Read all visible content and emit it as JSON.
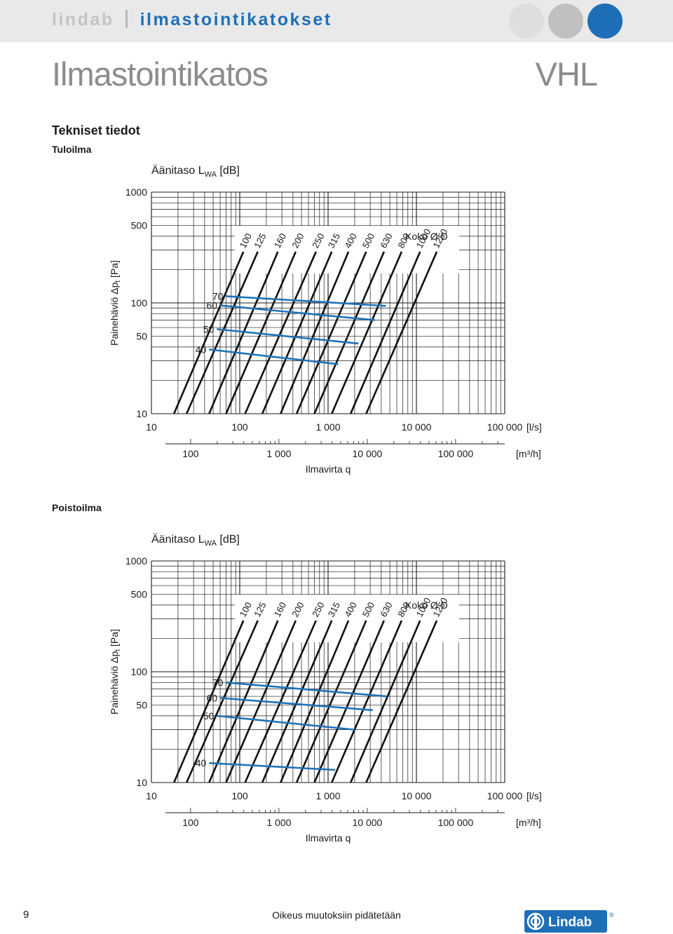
{
  "header": {
    "brand": "lindab",
    "section": "ilmastointikatokset",
    "title": "Ilmastointikatos",
    "model": "VHL",
    "dot_colors": [
      "#dedede",
      "#c0c0c0",
      "#1e6fb8"
    ]
  },
  "intro": {
    "heading": "Tekniset tiedot"
  },
  "charts": [
    {
      "section_label": "Tuloilma",
      "sound_label": "Äänitaso L",
      "sound_sub": "WA",
      "sound_unit": " [dB]",
      "ylabel": "Painehäviö Δp",
      "ylabel_sub": "t",
      "ylabel_unit": " [Pa]",
      "y_ticks": [
        "1000",
        "500",
        "100",
        "50",
        "10"
      ],
      "x_ticks_ls": [
        "10",
        "100",
        "1 000",
        "10 000",
        "100 000"
      ],
      "x_unit_ls": "[l/s]",
      "x_ticks_m3h": [
        "100",
        "1 000",
        "10 000",
        "100 000"
      ],
      "x_unit_m3h": "[m³/h]",
      "xlabel": "Ilmavirta q",
      "size_title": "Koko Ø D",
      "sizes": [
        "100",
        "125",
        "160",
        "200",
        "250",
        "315",
        "400",
        "500",
        "630",
        "800",
        "1000",
        "1250"
      ],
      "db_levels": [
        "40",
        "50",
        "60",
        "70"
      ]
    },
    {
      "section_label": "Poistoilma",
      "sound_label": "Äänitaso L",
      "sound_sub": "WA",
      "sound_unit": " [dB]",
      "ylabel": "Painehäviö Δp",
      "ylabel_sub": "t",
      "ylabel_unit": " [Pa]",
      "y_ticks": [
        "1000",
        "500",
        "100",
        "50",
        "10"
      ],
      "x_ticks_ls": [
        "10",
        "100",
        "1 000",
        "10 000",
        "100 000"
      ],
      "x_unit_ls": "[l/s]",
      "x_ticks_m3h": [
        "100",
        "1 000",
        "10 000",
        "100 000"
      ],
      "x_unit_m3h": "[m³/h]",
      "xlabel": "Ilmavirta q",
      "size_title": "Koko Ø D",
      "sizes": [
        "100",
        "125",
        "160",
        "200",
        "250",
        "315",
        "400",
        "500",
        "630",
        "800",
        "1000",
        "1250"
      ],
      "db_levels": [
        "40",
        "50",
        "60",
        "70"
      ]
    }
  ],
  "chart_data": [
    {
      "type": "line",
      "title": "Tuloilma",
      "xlabel": "Ilmavirta q [l/s]",
      "ylabel": "Painehäviö Δpt [Pa]",
      "x_scale": "log",
      "y_scale": "log",
      "xlim": [
        10,
        100000
      ],
      "ylim": [
        10,
        1000
      ],
      "grid": true,
      "series": [
        {
          "name": "100",
          "x": [
            18,
            110
          ],
          "y": [
            10,
            290
          ]
        },
        {
          "name": "125",
          "x": [
            25,
            160
          ],
          "y": [
            10,
            290
          ]
        },
        {
          "name": "160",
          "x": [
            45,
            270
          ],
          "y": [
            10,
            290
          ]
        },
        {
          "name": "200",
          "x": [
            70,
            430
          ],
          "y": [
            10,
            290
          ]
        },
        {
          "name": "250",
          "x": [
            115,
            730
          ],
          "y": [
            10,
            290
          ]
        },
        {
          "name": "315",
          "x": [
            180,
            1100
          ],
          "y": [
            10,
            290
          ]
        },
        {
          "name": "400",
          "x": [
            290,
            1700
          ],
          "y": [
            10,
            290
          ]
        },
        {
          "name": "500",
          "x": [
            440,
            2700
          ],
          "y": [
            10,
            290
          ]
        },
        {
          "name": "630",
          "x": [
            700,
            4300
          ],
          "y": [
            10,
            290
          ]
        },
        {
          "name": "800",
          "x": [
            1100,
            6800
          ],
          "y": [
            10,
            290
          ]
        },
        {
          "name": "1000",
          "x": [
            1800,
            11000
          ],
          "y": [
            10,
            290
          ]
        },
        {
          "name": "1250",
          "x": [
            2700,
            17000
          ],
          "y": [
            10,
            290
          ]
        },
        {
          "name": "40",
          "x": [
            45,
            1300
          ],
          "y": [
            38,
            28
          ]
        },
        {
          "name": "50",
          "x": [
            55,
            2200
          ],
          "y": [
            58,
            43
          ]
        },
        {
          "name": "60",
          "x": [
            60,
            3400
          ],
          "y": [
            95,
            70
          ]
        },
        {
          "name": "70",
          "x": [
            70,
            4500
          ],
          "y": [
            115,
            94
          ]
        }
      ]
    },
    {
      "type": "line",
      "title": "Poistoilma",
      "xlabel": "Ilmavirta q [l/s]",
      "ylabel": "Painehäviö Δpt [Pa]",
      "x_scale": "log",
      "y_scale": "log",
      "xlim": [
        10,
        100000
      ],
      "ylim": [
        10,
        1000
      ],
      "grid": true,
      "series": [
        {
          "name": "100",
          "x": [
            18,
            110
          ],
          "y": [
            10,
            290
          ]
        },
        {
          "name": "125",
          "x": [
            25,
            160
          ],
          "y": [
            10,
            290
          ]
        },
        {
          "name": "160",
          "x": [
            45,
            270
          ],
          "y": [
            10,
            290
          ]
        },
        {
          "name": "200",
          "x": [
            70,
            430
          ],
          "y": [
            10,
            290
          ]
        },
        {
          "name": "250",
          "x": [
            115,
            730
          ],
          "y": [
            10,
            290
          ]
        },
        {
          "name": "315",
          "x": [
            180,
            1100
          ],
          "y": [
            10,
            290
          ]
        },
        {
          "name": "400",
          "x": [
            290,
            1700
          ],
          "y": [
            10,
            290
          ]
        },
        {
          "name": "500",
          "x": [
            440,
            2700
          ],
          "y": [
            10,
            290
          ]
        },
        {
          "name": "630",
          "x": [
            700,
            4300
          ],
          "y": [
            10,
            290
          ]
        },
        {
          "name": "800",
          "x": [
            1100,
            6800
          ],
          "y": [
            10,
            290
          ]
        },
        {
          "name": "1000",
          "x": [
            1800,
            11000
          ],
          "y": [
            10,
            290
          ]
        },
        {
          "name": "1250",
          "x": [
            2700,
            17000
          ],
          "y": [
            10,
            290
          ]
        },
        {
          "name": "40",
          "x": [
            45,
            1200
          ],
          "y": [
            15,
            13
          ]
        },
        {
          "name": "50",
          "x": [
            55,
            2000
          ],
          "y": [
            40,
            30
          ]
        },
        {
          "name": "60",
          "x": [
            60,
            3200
          ],
          "y": [
            58,
            45
          ]
        },
        {
          "name": "70",
          "x": [
            70,
            4600
          ],
          "y": [
            80,
            60
          ]
        }
      ]
    }
  ],
  "footer": {
    "page": "9",
    "note": "Oikeus muutoksiin pidätetään",
    "logo_text": "Lindab",
    "logo_mark": "®",
    "logo_color": "#1e6fb8"
  }
}
